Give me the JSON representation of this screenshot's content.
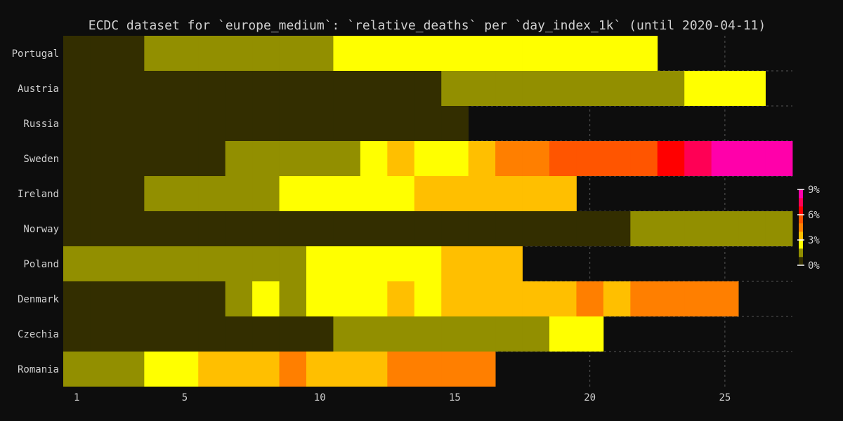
{
  "chart_data": {
    "type": "heatmap",
    "title": "ECDC dataset for `europe_medium`: `relative_deaths` per `day_index_1k` (until 2020-04-11)",
    "xlabel": "",
    "ylabel": "",
    "x_ticks": [
      1,
      5,
      10,
      15,
      20,
      25
    ],
    "xlim": [
      0.5,
      27.5
    ],
    "grid": true,
    "legend": "colorbar-right",
    "colorbar": {
      "ticks": [
        "9%",
        "6%",
        "3%",
        "0%"
      ],
      "range": [
        0,
        9
      ]
    },
    "levels": {
      "0": "#332e00",
      "1": "#928f00",
      "2": "#ffff00",
      "3": "#ffbf00",
      "4": "#ff7f00",
      "5": "#ff5500",
      "6": "#ff0000",
      "7": "#ff0055",
      "8": "#ff00aa"
    },
    "rows": [
      {
        "country": "Portugal",
        "values": [
          0,
          0,
          0,
          1,
          1,
          1,
          1,
          1,
          1,
          1,
          2,
          2,
          2,
          2,
          2,
          2,
          2,
          2,
          2,
          2,
          2,
          2
        ]
      },
      {
        "country": "Austria",
        "values": [
          0,
          0,
          0,
          0,
          0,
          0,
          0,
          0,
          0,
          0,
          0,
          0,
          0,
          0,
          1,
          1,
          1,
          1,
          1,
          1,
          1,
          1,
          1,
          2,
          2,
          2
        ]
      },
      {
        "country": "Russia",
        "values": [
          0,
          0,
          0,
          0,
          0,
          0,
          0,
          0,
          0,
          0,
          0,
          0,
          0,
          0,
          0
        ]
      },
      {
        "country": "Sweden",
        "values": [
          0,
          0,
          0,
          0,
          0,
          0,
          1,
          1,
          1,
          1,
          1,
          2,
          3,
          2,
          2,
          3,
          4,
          4,
          5,
          5,
          5,
          5,
          6,
          7,
          8,
          8,
          8
        ]
      },
      {
        "country": "Ireland",
        "values": [
          0,
          0,
          0,
          1,
          1,
          1,
          1,
          1,
          2,
          2,
          2,
          2,
          2,
          3,
          3,
          3,
          3,
          3,
          3
        ]
      },
      {
        "country": "Norway",
        "values": [
          0,
          0,
          0,
          0,
          0,
          0,
          0,
          0,
          0,
          0,
          0,
          0,
          0,
          0,
          0,
          0,
          0,
          0,
          0,
          0,
          0,
          1,
          1,
          1,
          1,
          1,
          1
        ]
      },
      {
        "country": "Poland",
        "values": [
          1,
          1,
          1,
          1,
          1,
          1,
          1,
          1,
          1,
          2,
          2,
          2,
          2,
          2,
          3,
          3,
          3
        ]
      },
      {
        "country": "Denmark",
        "values": [
          0,
          0,
          0,
          0,
          0,
          0,
          1,
          2,
          1,
          2,
          2,
          2,
          3,
          2,
          3,
          3,
          3,
          3,
          3,
          4,
          3,
          4,
          4,
          4,
          4
        ]
      },
      {
        "country": "Czechia",
        "values": [
          0,
          0,
          0,
          0,
          0,
          0,
          0,
          0,
          0,
          0,
          1,
          1,
          1,
          1,
          1,
          1,
          1,
          1,
          2,
          2
        ]
      },
      {
        "country": "Romania",
        "values": [
          1,
          1,
          1,
          2,
          2,
          3,
          3,
          3,
          4,
          3,
          3,
          3,
          4,
          4,
          4,
          4
        ]
      }
    ]
  }
}
